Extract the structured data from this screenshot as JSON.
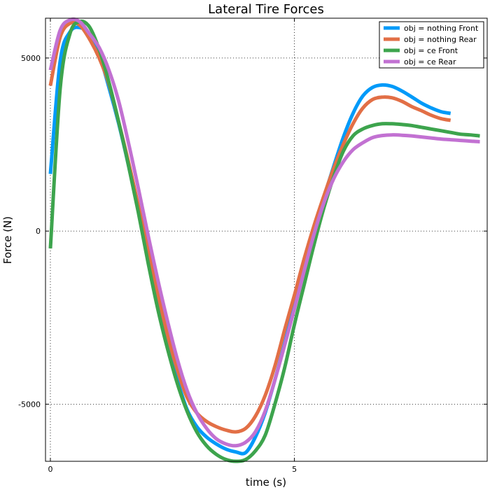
{
  "chart_data": {
    "type": "line",
    "title": "Lateral Tire Forces",
    "xlabel": "time (s)",
    "ylabel": "Force (N)",
    "xlim": [
      -0.1,
      8.95
    ],
    "ylim": [
      -6650,
      6150
    ],
    "xticks": [
      0,
      5
    ],
    "xtick_labels": [
      "0",
      "5"
    ],
    "yticks": [
      -5000,
      0,
      5000
    ],
    "ytick_labels": [
      "-5000",
      "0",
      "5000"
    ],
    "grid": true,
    "legend_position": "top-right",
    "series": [
      {
        "name": "obj = nothing Front",
        "color": "#009af9",
        "x": [
          0,
          0.2,
          0.4,
          0.6,
          0.8,
          1.0,
          1.2,
          1.4,
          1.6,
          1.8,
          2.0,
          2.2,
          2.4,
          2.6,
          2.8,
          3.0,
          3.2,
          3.4,
          3.6,
          3.8,
          4.0,
          4.2,
          4.4,
          4.6,
          4.8,
          5.0,
          5.2,
          5.4,
          5.6,
          5.8,
          6.0,
          6.2,
          6.4,
          6.6,
          6.8,
          7.0,
          7.2,
          7.4,
          7.6,
          7.8,
          8.0,
          8.2
        ],
        "y": [
          1650,
          4900,
          5750,
          5880,
          5680,
          5100,
          4150,
          3100,
          1900,
          600,
          -800,
          -2100,
          -3300,
          -4300,
          -5150,
          -5650,
          -5950,
          -6150,
          -6300,
          -6380,
          -6400,
          -5950,
          -5250,
          -4300,
          -3250,
          -2150,
          -1050,
          0,
          950,
          1850,
          2700,
          3400,
          3900,
          4150,
          4220,
          4180,
          4050,
          3880,
          3700,
          3560,
          3450,
          3400
        ]
      },
      {
        "name": "obj = nothing Rear",
        "color": "#e26f46",
        "x": [
          0,
          0.2,
          0.4,
          0.6,
          0.8,
          1.0,
          1.2,
          1.4,
          1.6,
          1.8,
          2.0,
          2.2,
          2.4,
          2.6,
          2.8,
          3.0,
          3.2,
          3.4,
          3.6,
          3.8,
          4.0,
          4.2,
          4.4,
          4.6,
          4.8,
          5.0,
          5.2,
          5.4,
          5.6,
          5.8,
          6.0,
          6.2,
          6.4,
          6.6,
          6.8,
          7.0,
          7.2,
          7.4,
          7.6,
          7.8,
          8.0,
          8.2
        ],
        "y": [
          4200,
          5600,
          6000,
          5950,
          5550,
          5000,
          4250,
          3150,
          2000,
          750,
          -550,
          -1800,
          -3000,
          -4000,
          -4800,
          -5250,
          -5500,
          -5650,
          -5750,
          -5800,
          -5700,
          -5350,
          -4750,
          -3900,
          -2850,
          -1850,
          -800,
          150,
          1000,
          1800,
          2500,
          3100,
          3550,
          3800,
          3870,
          3850,
          3750,
          3600,
          3480,
          3350,
          3250,
          3200
        ]
      },
      {
        "name": "obj = ce Front",
        "color": "#3da44d",
        "x": [
          0,
          0.2,
          0.4,
          0.6,
          0.8,
          1.0,
          1.2,
          1.4,
          1.6,
          1.8,
          2.0,
          2.2,
          2.4,
          2.6,
          2.8,
          3.0,
          3.2,
          3.4,
          3.6,
          3.8,
          4.0,
          4.2,
          4.4,
          4.6,
          4.8,
          5.0,
          5.2,
          5.4,
          5.6,
          5.8,
          6.0,
          6.2,
          6.4,
          6.6,
          6.8,
          7.0,
          7.2,
          7.4,
          7.6,
          7.8,
          8.0,
          8.2,
          8.4,
          8.6,
          8.8
        ],
        "y": [
          -500,
          4100,
          5700,
          6050,
          5900,
          5250,
          4300,
          3150,
          1900,
          550,
          -900,
          -2250,
          -3400,
          -4400,
          -5200,
          -5800,
          -6200,
          -6450,
          -6600,
          -6650,
          -6600,
          -6350,
          -5900,
          -5000,
          -3950,
          -2700,
          -1550,
          -400,
          650,
          1550,
          2300,
          2750,
          2950,
          3050,
          3100,
          3100,
          3080,
          3050,
          3000,
          2950,
          2900,
          2850,
          2800,
          2780,
          2750
        ]
      },
      {
        "name": "obj = ce Rear",
        "color": "#c271d2",
        "x": [
          0,
          0.2,
          0.4,
          0.6,
          0.8,
          1.0,
          1.2,
          1.4,
          1.6,
          1.8,
          2.0,
          2.2,
          2.4,
          2.6,
          2.8,
          3.0,
          3.2,
          3.4,
          3.6,
          3.8,
          4.0,
          4.2,
          4.4,
          4.6,
          4.8,
          5.0,
          5.2,
          5.4,
          5.6,
          5.8,
          6.0,
          6.2,
          6.4,
          6.6,
          6.8,
          7.0,
          7.2,
          7.4,
          7.6,
          7.8,
          8.0,
          8.2,
          8.4,
          8.6,
          8.8
        ],
        "y": [
          4650,
          5800,
          6100,
          6050,
          5700,
          5300,
          4650,
          3750,
          2550,
          1250,
          -100,
          -1400,
          -2600,
          -3700,
          -4600,
          -5250,
          -5700,
          -6000,
          -6150,
          -6200,
          -6100,
          -5800,
          -5200,
          -4300,
          -3300,
          -2250,
          -1150,
          -100,
          800,
          1500,
          2000,
          2350,
          2550,
          2700,
          2760,
          2780,
          2770,
          2750,
          2720,
          2690,
          2660,
          2640,
          2620,
          2600,
          2580
        ]
      }
    ]
  }
}
